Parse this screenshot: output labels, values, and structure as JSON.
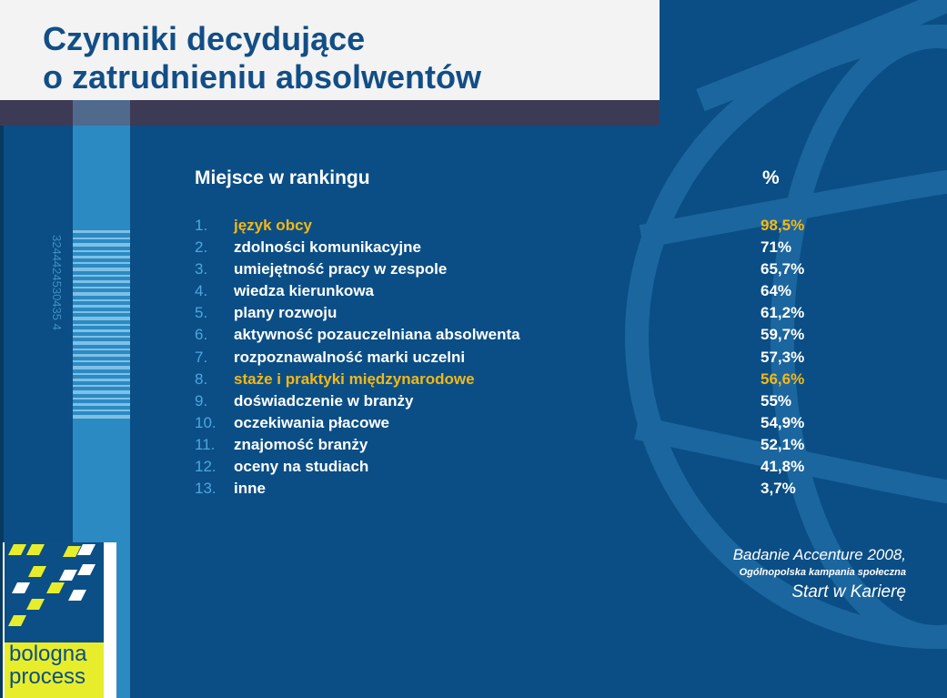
{
  "title": {
    "line1": "Czynniki decydujące",
    "line2": "o zatrudnieniu absolwentów"
  },
  "barcode_digits": "3244424530435 4",
  "table": {
    "header_label": "Miejsce w rankingu",
    "header_pct": "%",
    "rows": [
      {
        "num": "1.",
        "label": "język obcy",
        "pct": "98,5%",
        "highlight": true
      },
      {
        "num": "2.",
        "label": "zdolności komunikacyjne",
        "pct": "71%",
        "highlight": false
      },
      {
        "num": "3.",
        "label": "umiejętność pracy w zespole",
        "pct": "65,7%",
        "highlight": false
      },
      {
        "num": "4.",
        "label": "wiedza kierunkowa",
        "pct": "64%",
        "highlight": false
      },
      {
        "num": "5.",
        "label": "plany rozwoju",
        "pct": "61,2%",
        "highlight": false
      },
      {
        "num": "6.",
        "label": "aktywność pozauczelniana absolwenta",
        "pct": "59,7%",
        "highlight": false
      },
      {
        "num": "7.",
        "label": "rozpoznawalność marki uczelni",
        "pct": "57,3%",
        "highlight": false
      },
      {
        "num": "8.",
        "label": "staże i praktyki międzynarodowe",
        "pct": "56,6%",
        "highlight": true
      },
      {
        "num": "9.",
        "label": "doświadczenie w branży",
        "pct": "55%",
        "highlight": false
      },
      {
        "num": "10.",
        "label": "oczekiwania płacowe",
        "pct": "54,9%",
        "highlight": false
      },
      {
        "num": "11.",
        "label": "znajomość branży",
        "pct": "52,1%",
        "highlight": false
      },
      {
        "num": "12.",
        "label": "oceny na studiach",
        "pct": "41,8%",
        "highlight": false
      },
      {
        "num": "13.",
        "label": "inne",
        "pct": " 3,7%",
        "highlight": false
      }
    ]
  },
  "source": {
    "line1": "Badanie Accenture 2008,",
    "line2": "Ogólnopolska kampania społeczna",
    "line3": "Start w Karierę"
  },
  "logo": {
    "line1": "bologna",
    "line2": "process"
  },
  "colors": {
    "background": "#0a4e85",
    "title": "#124e86",
    "highlight": "#f5b815",
    "number": "#4ea6dc",
    "stripe": "#2b8ac2",
    "logo_yellow": "#e7ed2b"
  }
}
